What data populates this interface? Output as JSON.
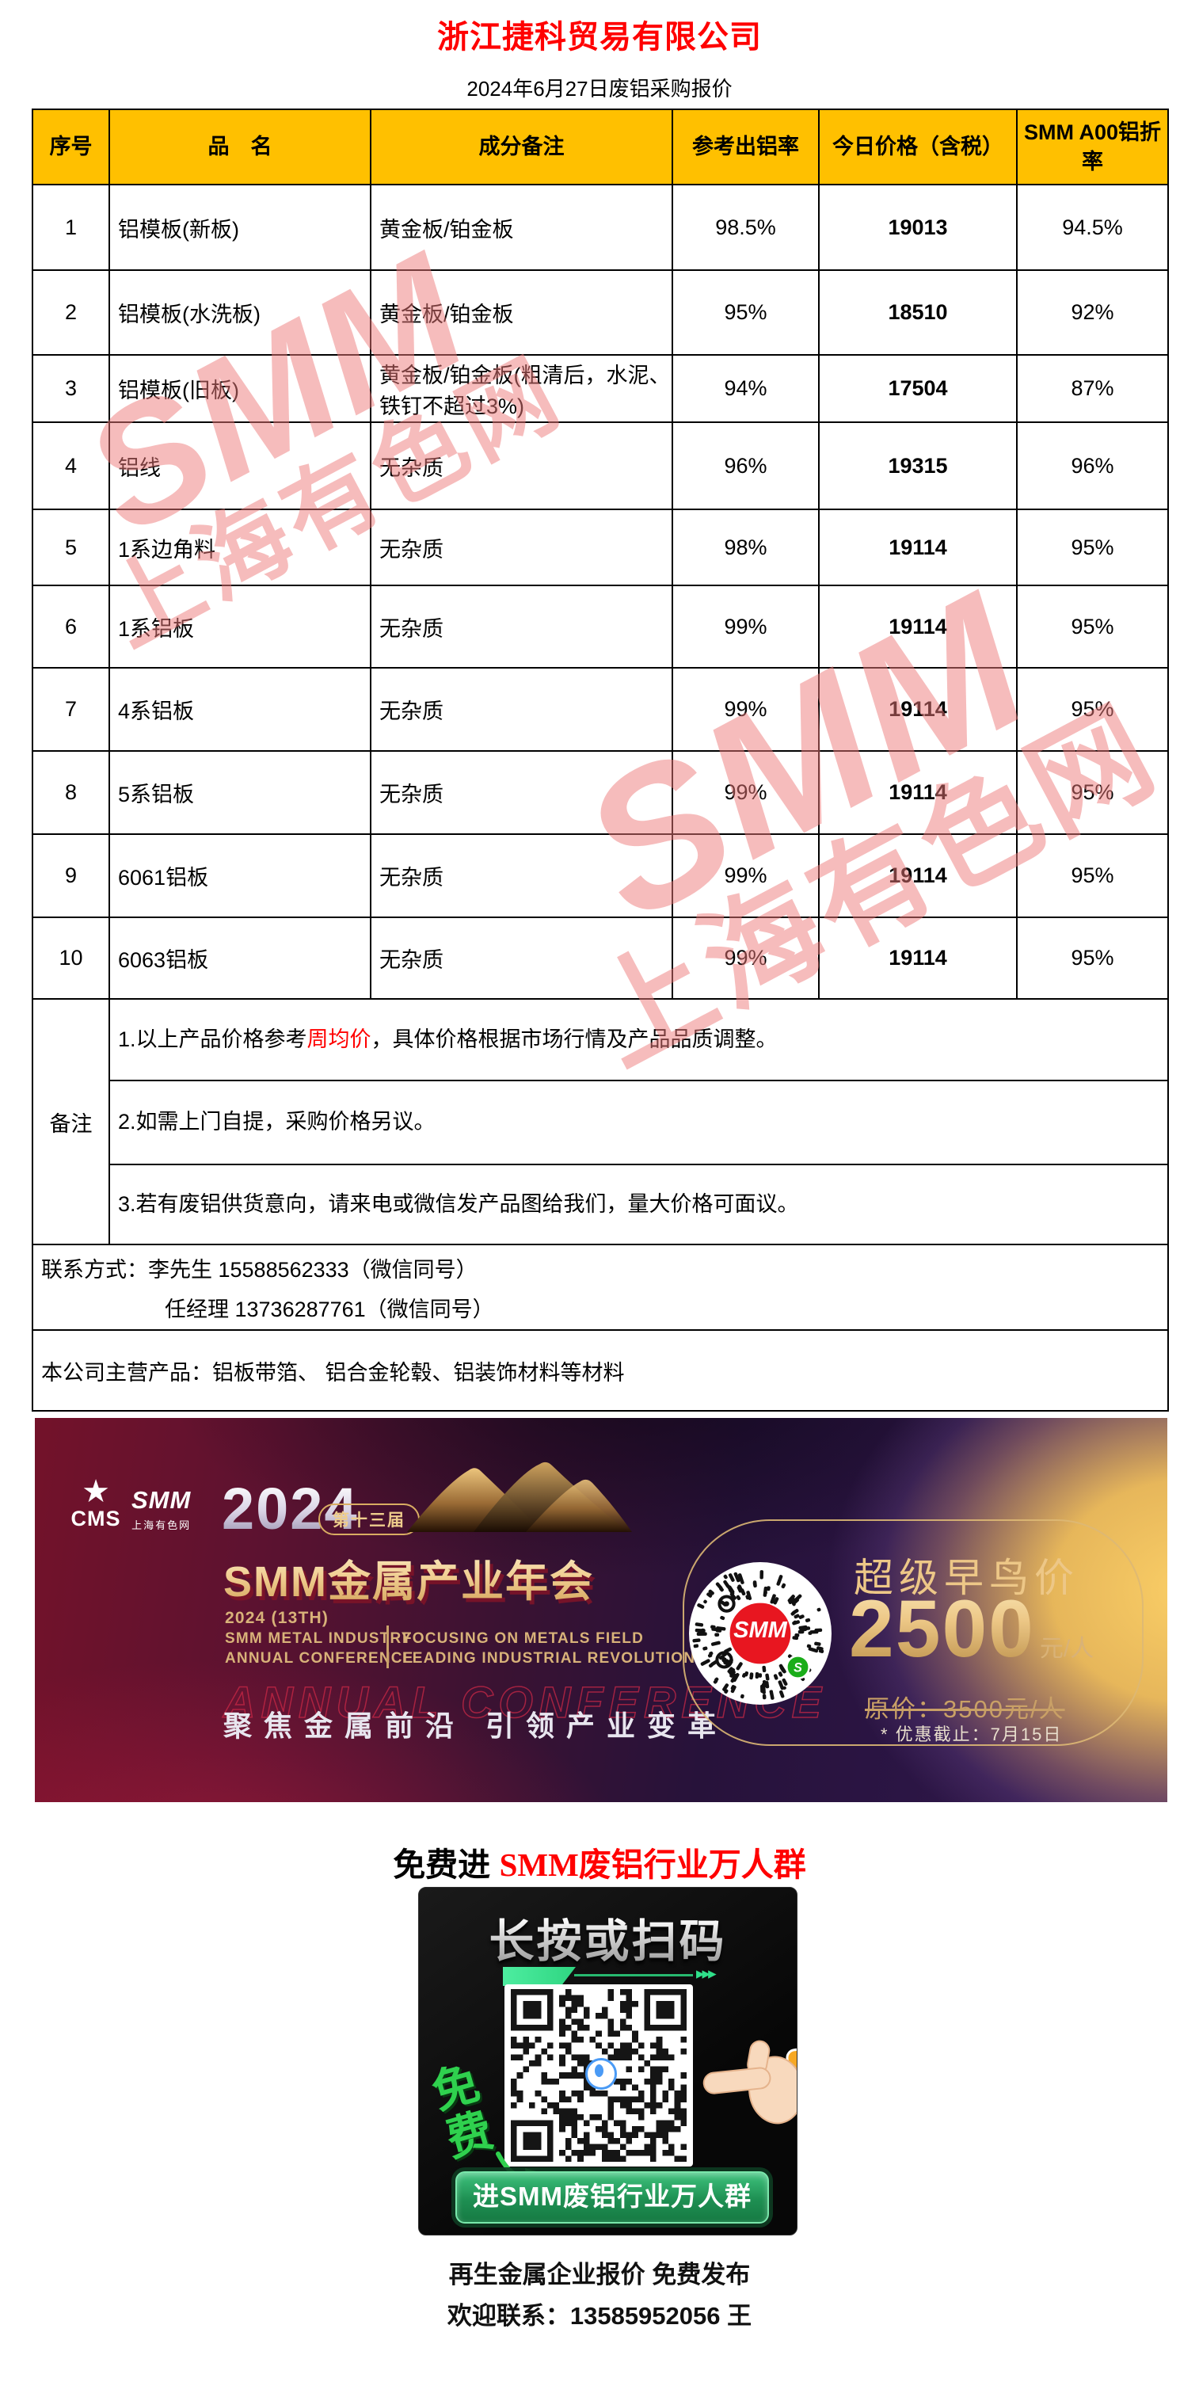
{
  "page": {
    "title": "浙江捷科贸易有限公司",
    "subtitle": "2024年6月27日废铝采购报价"
  },
  "colors": {
    "header_bg": "#FFC000",
    "title_red": "#FF0000",
    "watermark_red": "#EE7A7A",
    "button_green": "#1E8F52",
    "gold": "#E3BC7C"
  },
  "watermark": {
    "line1": "SMM",
    "line2": "上海有色网"
  },
  "table": {
    "headers": [
      "序号",
      "品　名",
      "成分备注",
      "参考出铝率",
      "今日价格（含税）",
      "SMM A00铝折率"
    ],
    "rows": [
      {
        "no": "1",
        "name": "铝模板(新板)",
        "note": "黄金板/铂金板",
        "rate": "98.5%",
        "price": "19013",
        "smm": "94.5%"
      },
      {
        "no": "2",
        "name": "铝模板(水洗板)",
        "note": "黄金板/铂金板",
        "rate": "95%",
        "price": "18510",
        "smm": "92%"
      },
      {
        "no": "3",
        "name": "铝模板(旧板)",
        "note": "黄金板/铂金板(粗清后，水泥、铁钉不超过3%)",
        "rate": "94%",
        "price": "17504",
        "smm": "87%"
      },
      {
        "no": "4",
        "name": "铝线",
        "note": "无杂质",
        "rate": "96%",
        "price": "19315",
        "smm": "96%"
      },
      {
        "no": "5",
        "name": "1系边角料",
        "note": "无杂质",
        "rate": "98%",
        "price": "19114",
        "smm": "95%"
      },
      {
        "no": "6",
        "name": "1系铝板",
        "note": "无杂质",
        "rate": "99%",
        "price": "19114",
        "smm": "95%"
      },
      {
        "no": "7",
        "name": "4系铝板",
        "note": "无杂质",
        "rate": "99%",
        "price": "19114",
        "smm": "95%"
      },
      {
        "no": "8",
        "name": "5系铝板",
        "note": "无杂质",
        "rate": "99%",
        "price": "19114",
        "smm": "95%"
      },
      {
        "no": "9",
        "name": "6061铝板",
        "note": "无杂质",
        "rate": "99%",
        "price": "19114",
        "smm": "95%"
      },
      {
        "no": "10",
        "name": "6063铝板",
        "note": "无杂质",
        "rate": "99%",
        "price": "19114",
        "smm": "95%"
      }
    ]
  },
  "remarks": {
    "label": "备注",
    "note1_prefix": "1.以上产品价格参考",
    "note1_highlight": "周均价",
    "note1_suffix": "，具体价格根据市场行情及产品品质调整。",
    "note2": "2.如需上门自提，采购价格另议。",
    "note3": "3.若有废铝供货意向，请来电或微信发产品图给我们，量大价格可面议。"
  },
  "contact": {
    "line1": "联系方式：李先生 15588562333（微信同号）",
    "line2": "任经理 13736287761（微信同号）"
  },
  "products": "本公司主营产品：铝板带箔、 铝合金轮毂、铝装饰材料等材料",
  "banner": {
    "star_icon": "★",
    "cms": "CMS",
    "smm_logo": "SMM",
    "smm_logo_sub": "上海有色网",
    "year": "2024",
    "badge": "第十三届",
    "title": "SMM金属产业年会",
    "sub_year": "2024 (13TH)",
    "sub_line1": "SMM METAL INDUSTRY",
    "sub_line2": "ANNUAL CONFERENCE",
    "right_line1": "FOCUSING ON METALS FIELD",
    "right_line2": "LEADING INDUSTRIAL REVOLUTION",
    "outline_text": "ANNUAL CONFERENCE",
    "slogan": "聚焦金属前沿 引领产业变革",
    "qr_center": "SMM",
    "price_label": "超级早鸟价",
    "price": "2500",
    "price_unit": "元/人",
    "original_price": "原价：3500元/人",
    "deadline": "* 优惠截止：7月15日"
  },
  "join": {
    "heading_black": "免费进 ",
    "heading_red": "SMM废铝行业万人群",
    "qr_title": "长按或扫码",
    "arrows_icon": "▸▸▸",
    "free_label": "免费",
    "button": "进SMM废铝行业万人群"
  },
  "footer": {
    "line1": "再生金属企业报价 免费发布",
    "line2": "欢迎联系：13585952056 王"
  }
}
